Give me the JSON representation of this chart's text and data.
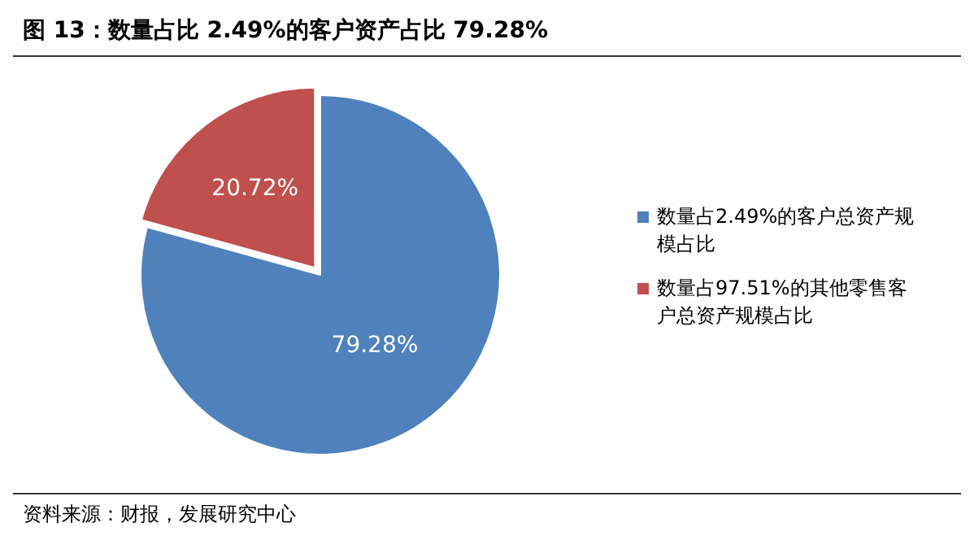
{
  "chart_data": {
    "type": "pie",
    "title": "图 13：数量占比 2.49%的客户资产占比 79.28%",
    "categories": [
      "数量占2.49%的客户总资产规模占比",
      "数量占97.51%的其他零售客户总资产规模占比"
    ],
    "values": [
      79.28,
      20.72
    ],
    "colors": [
      "#4f81bd",
      "#c0504d"
    ],
    "value_labels": [
      "79.28%",
      "20.72%"
    ],
    "legend": "right",
    "annotations": [
      "资料来源：财报，发展研究中心"
    ]
  }
}
